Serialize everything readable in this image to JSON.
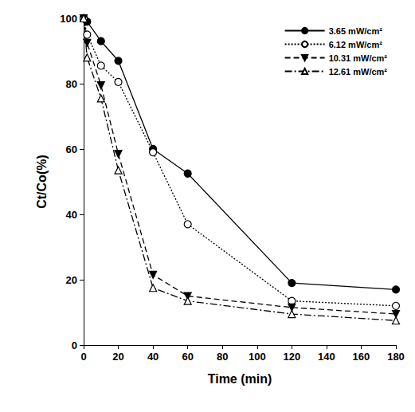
{
  "chart_data": {
    "type": "line",
    "x_label": "Time (min)",
    "y_label": "Ct/Co(%)",
    "x": [
      0,
      2,
      10,
      20,
      40,
      60,
      120,
      180
    ],
    "series": [
      {
        "name": "3.65 mW/cm²",
        "color": "#000000",
        "marker": "filled_circle",
        "line_style": "solid",
        "values": [
          100,
          99,
          93,
          87,
          60,
          52.5,
          19,
          17
        ]
      },
      {
        "name": "6.12 mW/cm²",
        "color": "#000000",
        "marker": "open_circle",
        "line_style": "dotted",
        "values": [
          100,
          95,
          85.5,
          80.5,
          59,
          37,
          13.5,
          12
        ]
      },
      {
        "name": "10.31 mW/cm²",
        "color": "#000000",
        "marker": "filled_triangle_down",
        "line_style": "dashed",
        "values": [
          100,
          92.5,
          79.5,
          58.5,
          21.5,
          15,
          11.5,
          9.5
        ]
      },
      {
        "name": "12.61 mW/cm²",
        "color": "#000000",
        "marker": "open_triangle_up",
        "line_style": "dashdot",
        "values": [
          100,
          88,
          75.5,
          53.5,
          17.5,
          13.5,
          9.5,
          7.5
        ]
      }
    ],
    "xlim": [
      0,
      180
    ],
    "xticks": [
      0,
      20,
      40,
      60,
      80,
      100,
      120,
      140,
      160,
      180
    ],
    "ylim": [
      0,
      100
    ],
    "yticks": [
      0,
      20,
      40,
      60,
      80,
      100
    ],
    "grid": false,
    "legend": "upper right"
  }
}
